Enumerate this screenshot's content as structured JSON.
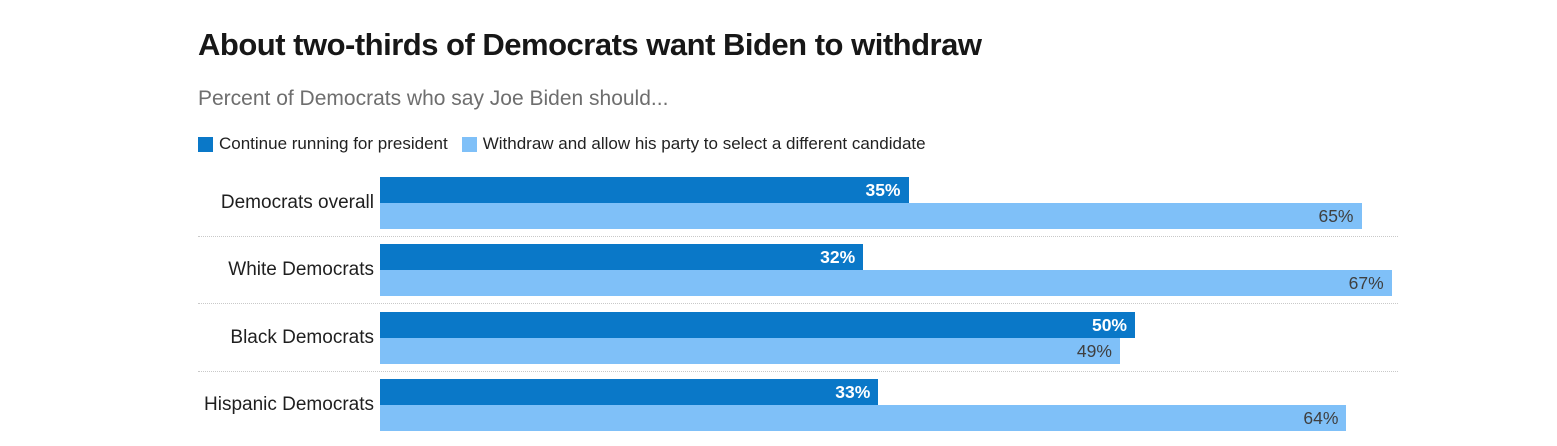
{
  "header": {
    "title": "About two-thirds of Democrats want Biden to withdraw",
    "subtitle": "Percent of Democrats who say Joe Biden should..."
  },
  "legend": {
    "items": [
      {
        "label": "Continue running for president",
        "color": "#0a78c8"
      },
      {
        "label": "Withdraw and allow his party to select a different candidate",
        "color": "#7fc0f8"
      }
    ]
  },
  "chart_data": {
    "type": "bar",
    "orientation": "horizontal",
    "title": "About two-thirds of Democrats want Biden to withdraw",
    "subtitle": "Percent of Democrats who say Joe Biden should...",
    "categories": [
      "Democrats overall",
      "White Democrats",
      "Black Democrats",
      "Hispanic Democrats"
    ],
    "series": [
      {
        "name": "Continue running for president",
        "color": "#0a78c8",
        "values": [
          35,
          32,
          50,
          33
        ],
        "value_labels": [
          "35%",
          "32%",
          "50%",
          "33%"
        ],
        "label_style": "white-inside-end"
      },
      {
        "name": "Withdraw and allow his party to select a different candidate",
        "color": "#7fc0f8",
        "values": [
          65,
          67,
          49,
          64
        ],
        "value_labels": [
          "65%",
          "67%",
          "49%",
          "64%"
        ],
        "label_style": "dark-inside-end"
      }
    ],
    "xlim": [
      0,
      67.4
    ],
    "xlabel": "",
    "ylabel": "",
    "grid": "dotted-row-separators",
    "separator_color": "#c9c9c9",
    "legend_position": "top"
  }
}
